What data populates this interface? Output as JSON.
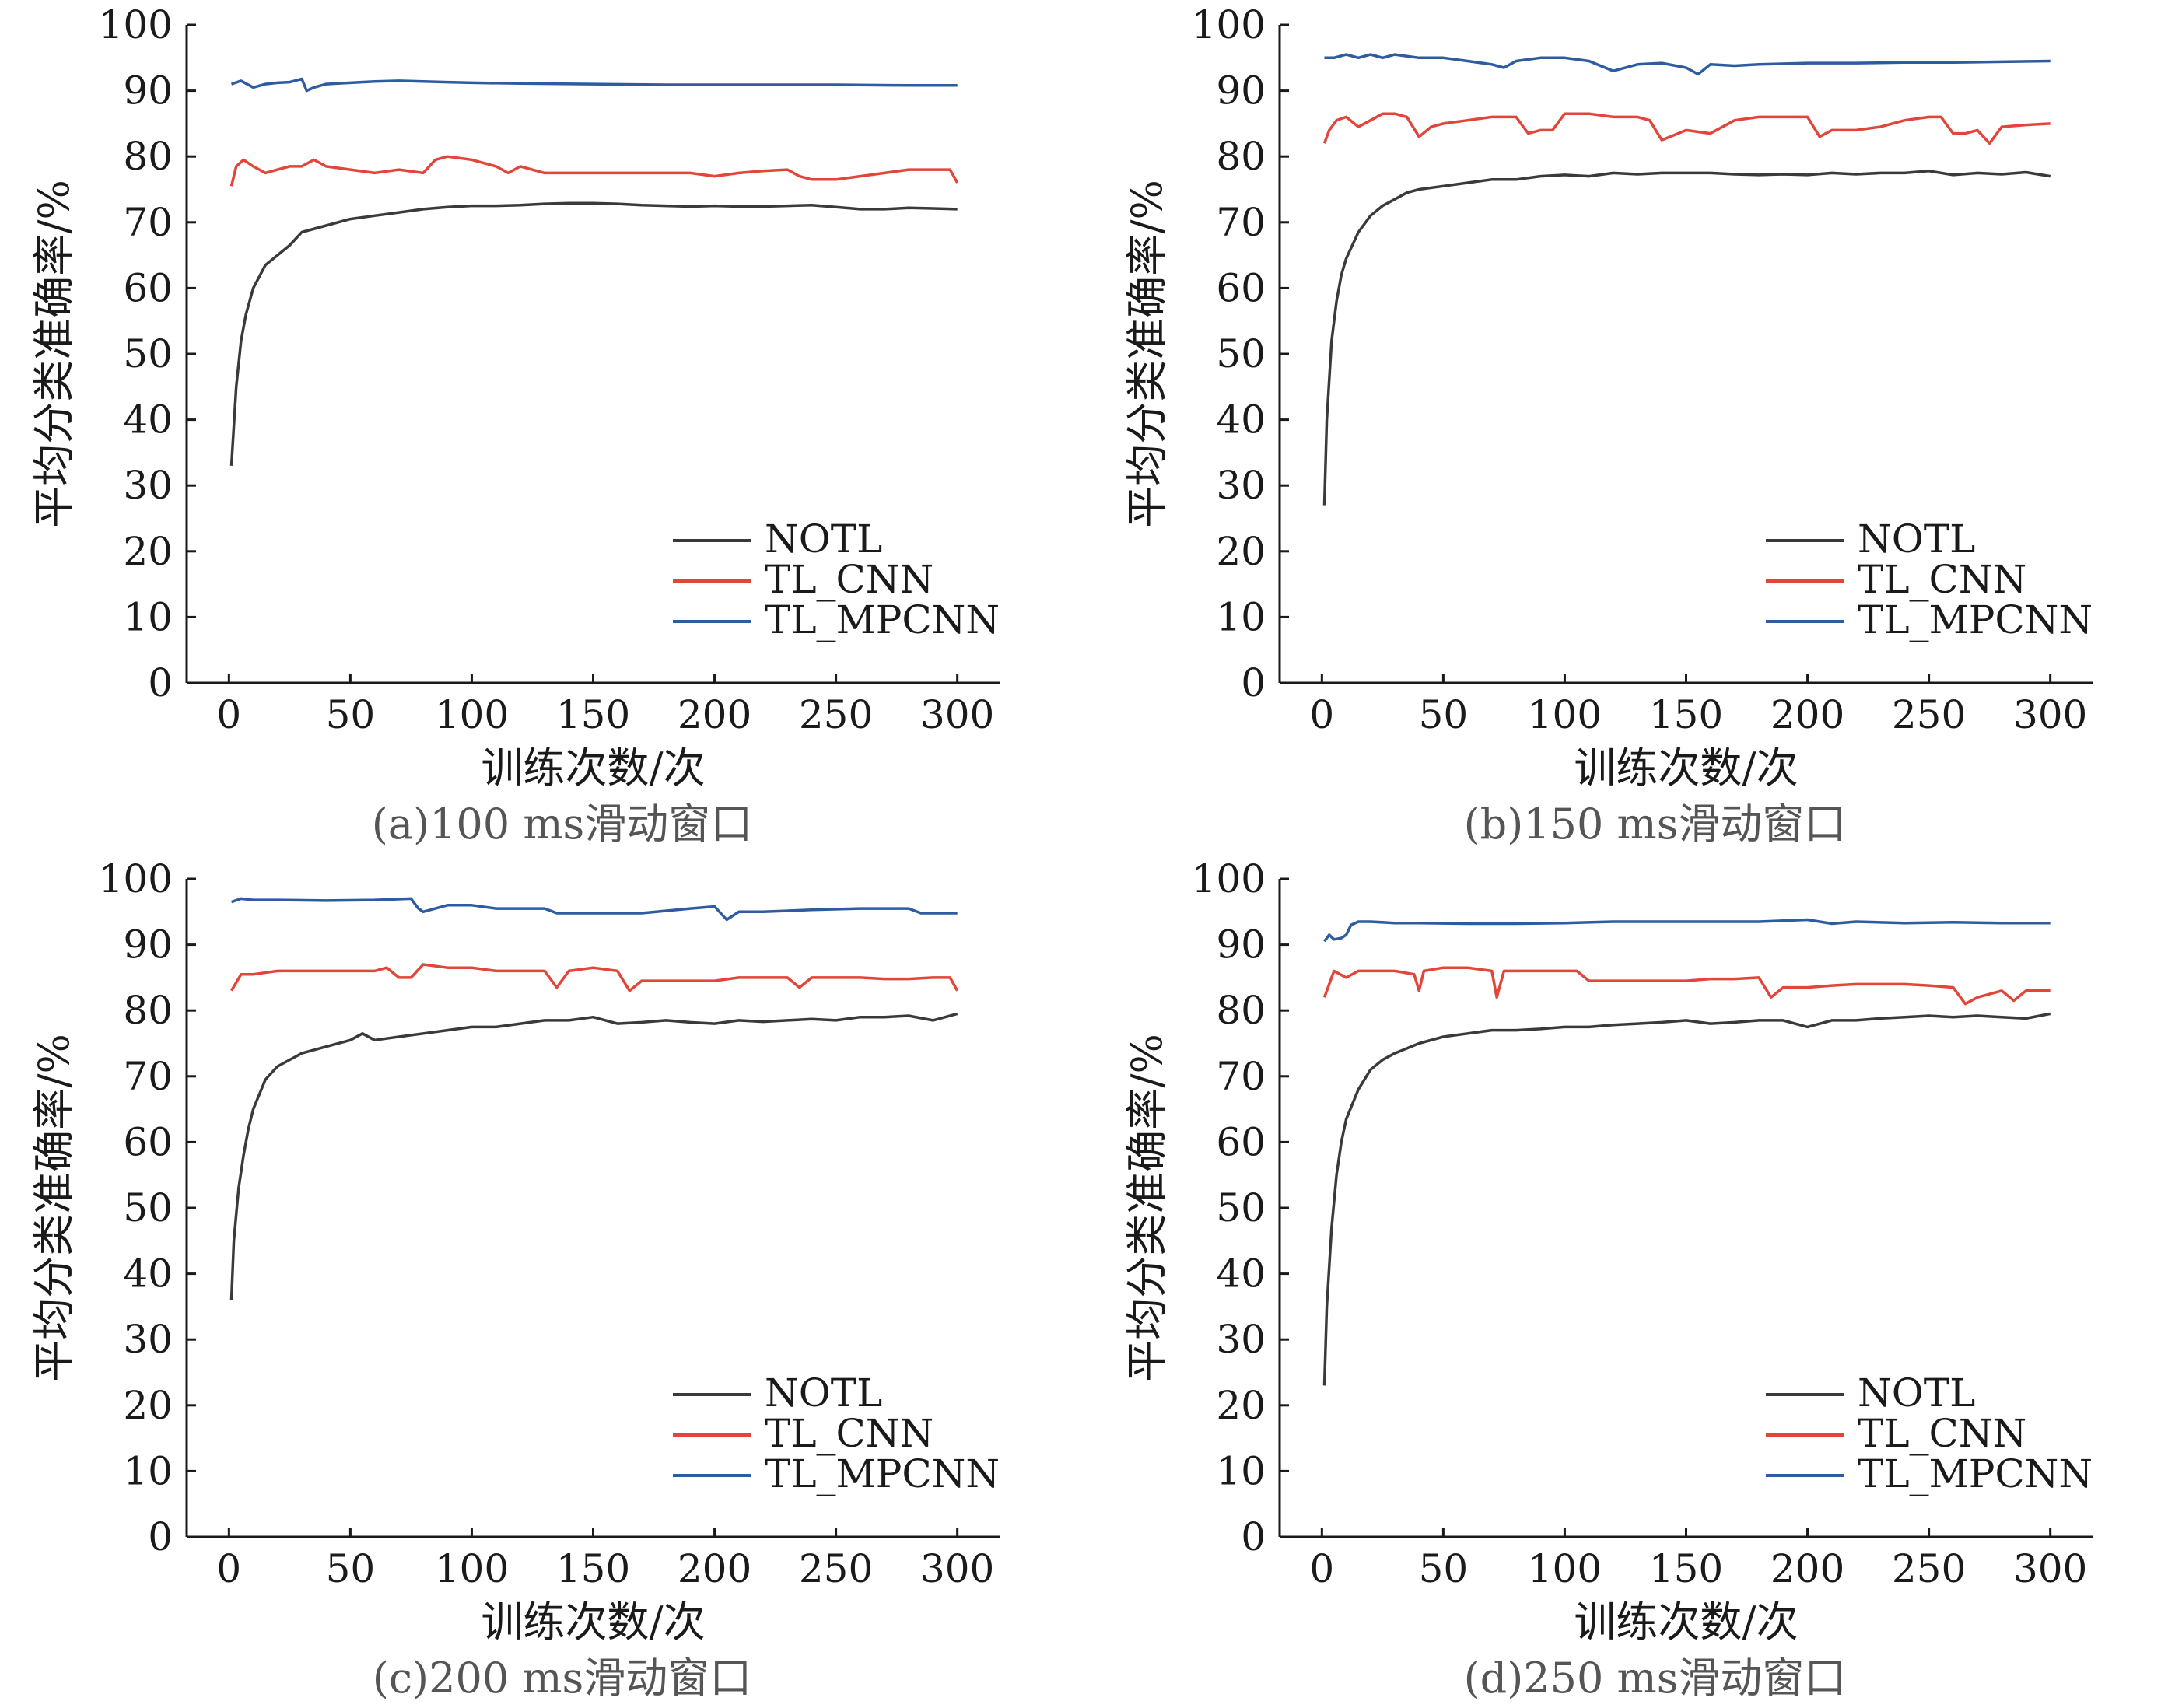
{
  "chart_data": [
    {
      "type": "line",
      "caption": "(a)100 ms滑动窗口",
      "xlabel": "训练次数/次",
      "ylabel": "平均分类准确率/%",
      "xlim": [
        0,
        300
      ],
      "ylim": [
        0,
        100
      ],
      "xticks": [
        0,
        50,
        100,
        150,
        200,
        250,
        300
      ],
      "yticks": [
        0,
        10,
        20,
        30,
        40,
        50,
        60,
        70,
        80,
        90,
        100
      ],
      "legend_position": "lower-right",
      "grid": false,
      "series": [
        {
          "name": "NOTL",
          "color": "#3a3a3a",
          "x": [
            1,
            3,
            5,
            7,
            10,
            15,
            20,
            25,
            30,
            40,
            50,
            60,
            70,
            80,
            90,
            100,
            110,
            120,
            130,
            140,
            150,
            160,
            170,
            180,
            190,
            200,
            210,
            220,
            230,
            240,
            250,
            260,
            270,
            280,
            290,
            300
          ],
          "y": [
            33,
            45,
            52,
            56,
            60,
            63.5,
            65,
            66.5,
            68.5,
            69.5,
            70.5,
            71,
            71.5,
            72,
            72.3,
            72.5,
            72.5,
            72.6,
            72.8,
            72.9,
            72.9,
            72.8,
            72.6,
            72.5,
            72.4,
            72.5,
            72.4,
            72.4,
            72.5,
            72.6,
            72.3,
            72.0,
            72.0,
            72.2,
            72.1,
            72.0
          ]
        },
        {
          "name": "TL_CNN",
          "color": "#e2463a",
          "x": [
            1,
            3,
            6,
            10,
            15,
            20,
            25,
            30,
            35,
            40,
            50,
            60,
            70,
            80,
            85,
            90,
            100,
            110,
            115,
            120,
            130,
            140,
            150,
            160,
            170,
            180,
            190,
            200,
            210,
            220,
            230,
            235,
            240,
            250,
            260,
            270,
            280,
            290,
            297,
            300
          ],
          "y": [
            75.5,
            78.5,
            79.5,
            78.5,
            77.5,
            78,
            78.5,
            78.5,
            79.5,
            78.5,
            78,
            77.5,
            78,
            77.5,
            79.5,
            80,
            79.5,
            78.5,
            77.5,
            78.5,
            77.5,
            77.5,
            77.5,
            77.5,
            77.5,
            77.5,
            77.5,
            77,
            77.5,
            77.8,
            78,
            77,
            76.5,
            76.5,
            77,
            77.5,
            78,
            78,
            78,
            76
          ]
        },
        {
          "name": "TL_MPCNN",
          "color": "#2f5ba0",
          "x": [
            1,
            5,
            10,
            15,
            20,
            25,
            30,
            32,
            35,
            40,
            50,
            60,
            70,
            80,
            90,
            100,
            120,
            150,
            180,
            200,
            220,
            250,
            280,
            300
          ],
          "y": [
            91,
            91.5,
            90.5,
            91,
            91.2,
            91.3,
            91.8,
            90,
            90.5,
            91,
            91.2,
            91.4,
            91.5,
            91.4,
            91.3,
            91.2,
            91.1,
            91,
            90.9,
            90.9,
            90.9,
            90.9,
            90.8,
            90.8
          ]
        }
      ]
    },
    {
      "type": "line",
      "caption": "(b)150 ms滑动窗口",
      "xlabel": "训练次数/次",
      "ylabel": "平均分类准确率/%",
      "xlim": [
        0,
        300
      ],
      "ylim": [
        0,
        100
      ],
      "xticks": [
        0,
        50,
        100,
        150,
        200,
        250,
        300
      ],
      "yticks": [
        0,
        10,
        20,
        30,
        40,
        50,
        60,
        70,
        80,
        90,
        100
      ],
      "legend_position": "lower-right",
      "grid": false,
      "series": [
        {
          "name": "NOTL",
          "color": "#3a3a3a",
          "x": [
            1,
            2,
            4,
            6,
            8,
            10,
            15,
            20,
            25,
            30,
            35,
            40,
            50,
            60,
            70,
            80,
            90,
            100,
            110,
            120,
            130,
            140,
            150,
            160,
            170,
            180,
            190,
            200,
            210,
            220,
            230,
            240,
            250,
            260,
            270,
            280,
            290,
            300
          ],
          "y": [
            27,
            40,
            52,
            58,
            62,
            64.5,
            68.5,
            71,
            72.5,
            73.5,
            74.5,
            75,
            75.5,
            76,
            76.5,
            76.5,
            77,
            77.2,
            77,
            77.5,
            77.3,
            77.5,
            77.5,
            77.5,
            77.3,
            77.2,
            77.3,
            77.2,
            77.5,
            77.3,
            77.5,
            77.5,
            77.8,
            77.2,
            77.5,
            77.3,
            77.6,
            77
          ]
        },
        {
          "name": "TL_CNN",
          "color": "#e2463a",
          "x": [
            1,
            3,
            6,
            10,
            15,
            20,
            25,
            30,
            35,
            40,
            45,
            50,
            60,
            70,
            80,
            85,
            90,
            95,
            100,
            110,
            120,
            130,
            135,
            140,
            150,
            160,
            170,
            180,
            190,
            200,
            205,
            210,
            220,
            230,
            240,
            250,
            255,
            260,
            265,
            270,
            275,
            280,
            290,
            300
          ],
          "y": [
            82,
            84,
            85.5,
            86,
            84.5,
            85.5,
            86.5,
            86.5,
            86,
            83,
            84.5,
            85,
            85.5,
            86,
            86,
            83.5,
            84,
            84,
            86.5,
            86.5,
            86,
            86,
            85.5,
            82.5,
            84,
            83.5,
            85.5,
            86,
            86,
            86,
            83,
            84,
            84,
            84.5,
            85.5,
            86,
            86,
            83.5,
            83.5,
            84,
            82,
            84.5,
            84.8,
            85
          ]
        },
        {
          "name": "TL_MPCNN",
          "color": "#2f5ba0",
          "x": [
            1,
            5,
            10,
            15,
            20,
            25,
            30,
            40,
            50,
            60,
            70,
            75,
            80,
            90,
            100,
            110,
            120,
            130,
            140,
            150,
            155,
            160,
            170,
            180,
            200,
            220,
            240,
            260,
            280,
            300
          ],
          "y": [
            95,
            95,
            95.5,
            95,
            95.5,
            95,
            95.5,
            95,
            95,
            94.5,
            94,
            93.5,
            94.5,
            95,
            95,
            94.5,
            93,
            94,
            94.2,
            93.5,
            92.5,
            94,
            93.8,
            94,
            94.2,
            94.2,
            94.3,
            94.3,
            94.4,
            94.5
          ]
        }
      ]
    },
    {
      "type": "line",
      "caption": "(c)200 ms滑动窗口",
      "xlabel": "训练次数/次",
      "ylabel": "平均分类准确率/%",
      "xlim": [
        0,
        300
      ],
      "ylim": [
        0,
        100
      ],
      "xticks": [
        0,
        50,
        100,
        150,
        200,
        250,
        300
      ],
      "yticks": [
        0,
        10,
        20,
        30,
        40,
        50,
        60,
        70,
        80,
        90,
        100
      ],
      "legend_position": "lower-right",
      "grid": false,
      "series": [
        {
          "name": "NOTL",
          "color": "#3a3a3a",
          "x": [
            1,
            2,
            4,
            6,
            8,
            10,
            15,
            20,
            25,
            30,
            40,
            50,
            55,
            60,
            70,
            80,
            90,
            100,
            110,
            120,
            130,
            140,
            150,
            160,
            170,
            180,
            190,
            200,
            210,
            220,
            230,
            240,
            250,
            260,
            270,
            280,
            290,
            300
          ],
          "y": [
            36,
            45,
            53,
            58,
            62,
            65,
            69.5,
            71.5,
            72.5,
            73.5,
            74.5,
            75.5,
            76.5,
            75.5,
            76,
            76.5,
            77,
            77.5,
            77.5,
            78,
            78.5,
            78.5,
            79,
            78,
            78.2,
            78.5,
            78.2,
            78,
            78.5,
            78.3,
            78.5,
            78.7,
            78.5,
            79,
            79,
            79.2,
            78.5,
            79.5
          ]
        },
        {
          "name": "TL_CNN",
          "color": "#e2463a",
          "x": [
            1,
            5,
            10,
            20,
            30,
            40,
            50,
            60,
            65,
            70,
            75,
            80,
            90,
            100,
            110,
            120,
            130,
            135,
            140,
            150,
            160,
            165,
            170,
            180,
            190,
            200,
            210,
            220,
            230,
            235,
            240,
            250,
            260,
            270,
            280,
            290,
            297,
            300
          ],
          "y": [
            83,
            85.5,
            85.5,
            86,
            86,
            86,
            86,
            86,
            86.5,
            85,
            85,
            87,
            86.5,
            86.5,
            86,
            86,
            86,
            83.5,
            86,
            86.5,
            86,
            83,
            84.5,
            84.5,
            84.5,
            84.5,
            85,
            85,
            85,
            83.5,
            85,
            85,
            85,
            84.8,
            84.8,
            85,
            85,
            83
          ]
        },
        {
          "name": "TL_MPCNN",
          "color": "#2f5ba0",
          "x": [
            1,
            5,
            10,
            20,
            40,
            60,
            75,
            78,
            80,
            90,
            100,
            110,
            130,
            135,
            150,
            170,
            190,
            200,
            205,
            210,
            220,
            240,
            260,
            270,
            280,
            285,
            300
          ],
          "y": [
            96.5,
            97,
            96.8,
            96.8,
            96.7,
            96.8,
            97,
            95.5,
            95,
            96,
            96,
            95.5,
            95.5,
            94.8,
            94.8,
            94.8,
            95.5,
            95.8,
            93.8,
            95,
            95,
            95.3,
            95.5,
            95.5,
            95.5,
            94.8,
            94.8
          ]
        }
      ]
    },
    {
      "type": "line",
      "caption": "(d)250 ms滑动窗口",
      "xlabel": "训练次数/次",
      "ylabel": "平均分类准确率/%",
      "xlim": [
        0,
        300
      ],
      "ylim": [
        0,
        100
      ],
      "xticks": [
        0,
        50,
        100,
        150,
        200,
        250,
        300
      ],
      "yticks": [
        0,
        10,
        20,
        30,
        40,
        50,
        60,
        70,
        80,
        90,
        100
      ],
      "legend_position": "lower-right",
      "grid": false,
      "series": [
        {
          "name": "NOTL",
          "color": "#3a3a3a",
          "x": [
            1,
            2,
            4,
            6,
            8,
            10,
            15,
            20,
            25,
            30,
            40,
            50,
            60,
            70,
            80,
            90,
            100,
            110,
            120,
            130,
            140,
            150,
            160,
            170,
            180,
            190,
            200,
            210,
            220,
            230,
            240,
            250,
            260,
            270,
            280,
            290,
            300
          ],
          "y": [
            23,
            35,
            47,
            55,
            60,
            63.5,
            68,
            71,
            72.5,
            73.5,
            75,
            76,
            76.5,
            77,
            77,
            77.2,
            77.5,
            77.5,
            77.8,
            78,
            78.2,
            78.5,
            78,
            78.2,
            78.5,
            78.5,
            77.5,
            78.5,
            78.5,
            78.8,
            79,
            79.2,
            79,
            79.2,
            79,
            78.8,
            79.5
          ]
        },
        {
          "name": "TL_CNN",
          "color": "#e2463a",
          "x": [
            1,
            5,
            10,
            15,
            20,
            30,
            38,
            40,
            42,
            50,
            60,
            70,
            72,
            75,
            80,
            90,
            100,
            105,
            110,
            120,
            130,
            140,
            150,
            160,
            170,
            180,
            185,
            190,
            200,
            210,
            220,
            230,
            240,
            250,
            260,
            265,
            270,
            275,
            280,
            285,
            290,
            295,
            300
          ],
          "y": [
            82,
            86,
            85,
            86,
            86,
            86,
            85.5,
            83,
            86,
            86.5,
            86.5,
            86,
            82,
            86,
            86,
            86,
            86,
            86,
            84.5,
            84.5,
            84.5,
            84.5,
            84.5,
            84.8,
            84.8,
            85,
            82,
            83.5,
            83.5,
            83.8,
            84,
            84,
            84,
            83.8,
            83.5,
            81,
            82,
            82.5,
            83,
            81.5,
            83,
            83,
            83
          ]
        },
        {
          "name": "TL_MPCNN",
          "color": "#2f5ba0",
          "x": [
            1,
            3,
            5,
            8,
            10,
            12,
            15,
            20,
            30,
            40,
            60,
            80,
            100,
            120,
            140,
            160,
            180,
            200,
            210,
            220,
            240,
            260,
            280,
            300
          ],
          "y": [
            90.5,
            91.5,
            90.8,
            91,
            91.5,
            93,
            93.5,
            93.5,
            93.3,
            93.3,
            93.2,
            93.2,
            93.3,
            93.5,
            93.5,
            93.5,
            93.5,
            93.8,
            93.2,
            93.5,
            93.3,
            93.4,
            93.3,
            93.3
          ]
        }
      ]
    }
  ]
}
